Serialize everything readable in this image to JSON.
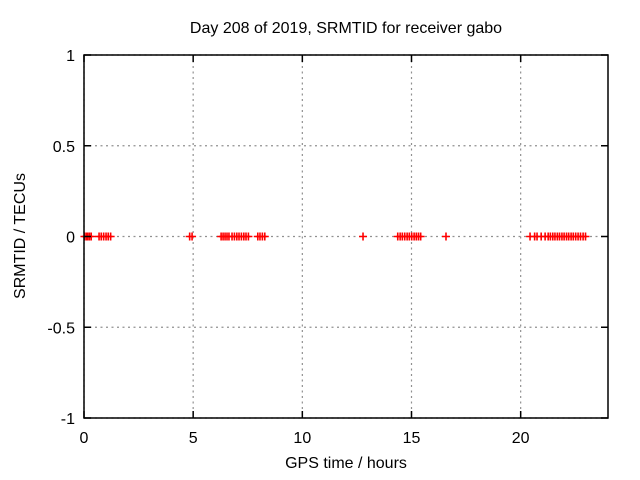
{
  "chart_data": {
    "type": "scatter",
    "title": "Day 208 of 2019, SRMTID for receiver gabo",
    "xlabel": "GPS time / hours",
    "ylabel": "SRMTID / TECUs",
    "xlim": [
      0,
      24
    ],
    "ylim": [
      -1,
      1
    ],
    "xticks": [
      0,
      5,
      10,
      15,
      20
    ],
    "xtick_labels": [
      "0",
      "5",
      "10",
      "15",
      "20"
    ],
    "yticks": [
      -1,
      -0.5,
      0,
      0.5,
      1
    ],
    "ytick_labels": [
      "-1",
      "-0.5",
      "0",
      "0.5",
      "1"
    ],
    "grid": true,
    "grid_style": "dashed",
    "legend": "none",
    "marker": "plus",
    "marker_color": "#ff0000",
    "grid_color": "#909090",
    "axis_color": "#000000",
    "background_color": "#ffffff",
    "series": [
      {
        "name": "SRMTID",
        "x": [
          0.02,
          0.1,
          0.17,
          0.25,
          0.33,
          0.69,
          0.79,
          0.9,
          1.01,
          1.11,
          1.22,
          4.84,
          4.95,
          6.28,
          6.37,
          6.46,
          6.55,
          6.64,
          6.78,
          6.89,
          7.0,
          7.1,
          7.21,
          7.32,
          7.42,
          7.53,
          7.96,
          8.06,
          8.17,
          8.28,
          12.78,
          14.37,
          14.48,
          14.58,
          14.69,
          14.8,
          14.9,
          15.01,
          15.12,
          15.22,
          15.32,
          15.42,
          16.58,
          20.43,
          20.64,
          20.75,
          20.94,
          21.12,
          21.26,
          21.36,
          21.47,
          21.57,
          21.68,
          21.78,
          21.89,
          21.99,
          22.1,
          22.2,
          22.31,
          22.41,
          22.52,
          22.63,
          22.74,
          22.86,
          22.97
        ],
        "y": [
          0,
          0,
          0,
          0,
          0,
          0,
          0,
          0,
          0,
          0,
          0,
          0,
          0,
          0,
          0,
          0,
          0,
          0,
          0,
          0,
          0,
          0,
          0,
          0,
          0,
          0,
          0,
          0,
          0,
          0,
          0,
          0,
          0,
          0,
          0,
          0,
          0,
          0,
          0,
          0,
          0,
          0,
          0,
          0,
          0,
          0,
          0,
          0,
          0,
          0,
          0,
          0,
          0,
          0,
          0,
          0,
          0,
          0,
          0,
          0,
          0,
          0,
          0,
          0,
          0
        ]
      }
    ]
  }
}
